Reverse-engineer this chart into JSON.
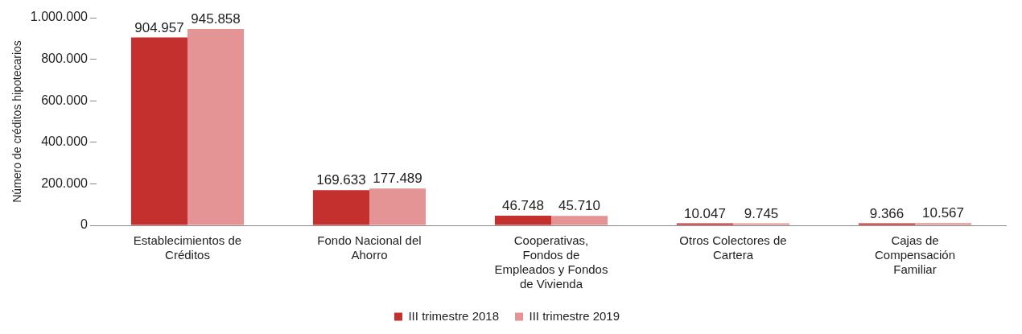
{
  "chart_data": {
    "type": "bar",
    "ylabel": "Número de créditos hipotecarios",
    "categories": [
      "Establecimientos de\nCréditos",
      "Fondo Nacional del\nAhorro",
      "Cooperativas,\nFondos de\nEmpleados y Fondos\nde Vivienda",
      "Otros Colectores de\nCartera",
      "Cajas de\nCompensación\nFamiliar"
    ],
    "series": [
      {
        "name": "III trimestre 2018",
        "color": "#c4302e",
        "values": [
          904957,
          169633,
          46748,
          10047,
          9366
        ],
        "value_labels": [
          "904.957",
          "169.633",
          "46.748",
          "10.047",
          "9.366"
        ]
      },
      {
        "name": "III trimestre 2019",
        "color": "#e59496",
        "values": [
          945858,
          177489,
          45710,
          9745,
          10567
        ],
        "value_labels": [
          "945.858",
          "177.489",
          "45.710",
          "9.745",
          "10.567"
        ]
      }
    ],
    "ylim": [
      0,
      1000000
    ],
    "yticks": [
      {
        "value": 0,
        "label": "0"
      },
      {
        "value": 200000,
        "label": "200.000"
      },
      {
        "value": 400000,
        "label": "400.000"
      },
      {
        "value": 600000,
        "label": "600.000"
      },
      {
        "value": 800000,
        "label": "800.000"
      },
      {
        "value": 1000000,
        "label": "1.000.000"
      }
    ],
    "grid": false,
    "legend": "bottom"
  }
}
